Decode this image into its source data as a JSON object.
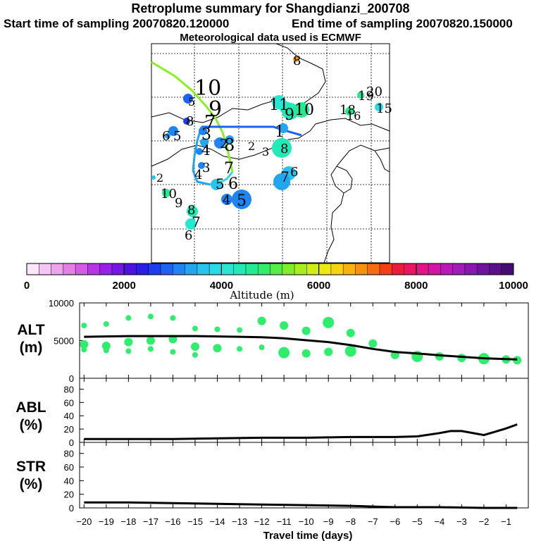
{
  "header": {
    "title": "Retroplume summary for Shangdianzi_200708",
    "start_label": "Start time of sampling 20070820.120000",
    "end_label": "End time of sampling 20070820.150000",
    "met_label": "Meteorological data used is ECMWF"
  },
  "colorbar": {
    "title": "Altitude (m)",
    "ticks": [
      "0",
      "2000",
      "4000",
      "6000",
      "8000",
      "10000"
    ],
    "range": [
      0,
      10000
    ],
    "colors": [
      "#fbe5fb",
      "#f4c6f4",
      "#eda4ed",
      "#e37fe6",
      "#d35be6",
      "#b934e8",
      "#9820ea",
      "#7416e6",
      "#4c12e0",
      "#2a1de4",
      "#1c3ef0",
      "#1d62f4",
      "#1f85f4",
      "#22a6f2",
      "#26c4ee",
      "#2ad9e8",
      "#26e6d4",
      "#22eab6",
      "#21ec94",
      "#2fee6e",
      "#55ee46",
      "#7fee28",
      "#a8ee1c",
      "#cfee14",
      "#eeea10",
      "#f8d40e",
      "#f8b40c",
      "#f8920c",
      "#f86c10",
      "#f43e14",
      "#ee1c3c",
      "#ea1664",
      "#e21488",
      "#d414a6",
      "#bc18b8",
      "#a21cbc",
      "#8818b0",
      "#70149e",
      "#5a108a",
      "#460c74"
    ]
  },
  "map": {
    "trajectory_path_labels": [
      "1",
      "2",
      "3",
      "4",
      "5",
      "6",
      "7",
      "8",
      "9",
      "10"
    ],
    "clusters": [
      {
        "label": "1",
        "altitude": 3000
      },
      {
        "label": "2",
        "altitude": 3200
      },
      {
        "label": "3",
        "altitude": 3400
      },
      {
        "label": "4",
        "altitude": 3500
      },
      {
        "label": "5",
        "altitude": 3600
      },
      {
        "label": "6",
        "altitude": 3800
      },
      {
        "label": "7",
        "altitude": 4000
      },
      {
        "label": "8",
        "altitude": 4300
      },
      {
        "label": "9",
        "altitude": 4600
      },
      {
        "label": "10",
        "altitude": 4800
      }
    ]
  },
  "chart_data": [
    {
      "type": "scatter+line",
      "panel": "ALT",
      "ylabel": "ALT\n(m)",
      "ylabel_line1": "ALT",
      "ylabel_line2": "(m)",
      "ylim": [
        0,
        10000
      ],
      "yticks": [
        "10000",
        "5000",
        "0"
      ],
      "xlim": [
        -20,
        0
      ],
      "line": {
        "x": [
          -20,
          -19,
          -18,
          -17,
          -16,
          -15,
          -14,
          -13,
          -12,
          -11,
          -10,
          -9,
          -8,
          -7,
          -6,
          -5,
          -4,
          -3,
          -2,
          -1,
          -0.5
        ],
        "y": [
          5500,
          5550,
          5600,
          5600,
          5600,
          5600,
          5550,
          5500,
          5450,
          5300,
          5050,
          4800,
          4400,
          3900,
          3500,
          3300,
          3050,
          2850,
          2650,
          2550,
          2500
        ]
      },
      "dots": {
        "x": [
          -20,
          -20,
          -20,
          -19,
          -19,
          -19,
          -18,
          -18,
          -18,
          -17,
          -17,
          -17,
          -16,
          -16,
          -16,
          -15,
          -15,
          -15,
          -14,
          -14,
          -13,
          -13,
          -12,
          -12,
          -11,
          -11,
          -10,
          -10,
          -9,
          -9,
          -8,
          -8,
          -7,
          -6,
          -5,
          -4,
          -3,
          -2,
          -1,
          -0.5
        ],
        "y": [
          7000,
          4500,
          3800,
          7200,
          4300,
          3700,
          8000,
          4800,
          3600,
          8200,
          5000,
          3900,
          8000,
          5200,
          3500,
          6600,
          4200,
          3100,
          6500,
          4000,
          6400,
          3900,
          7600,
          4100,
          7000,
          3400,
          6300,
          3300,
          7400,
          3500,
          6000,
          3600,
          4600,
          3100,
          2900,
          2900,
          2700,
          2600,
          2500,
          2400
        ]
      }
    },
    {
      "type": "line",
      "panel": "ABL",
      "ylabel": "ABL\n(%)",
      "ylabel_line1": "ABL",
      "ylabel_line2": "(%)",
      "ylim": [
        0,
        90
      ],
      "yticks": [
        "80",
        "60",
        "40",
        "20",
        "0"
      ],
      "xlim": [
        -20,
        0
      ],
      "x": [
        -20,
        -18,
        -16,
        -14,
        -12,
        -10,
        -8,
        -6,
        -5,
        -4,
        -3.5,
        -3,
        -2,
        -1.5,
        -1,
        -0.5
      ],
      "y": [
        5,
        5,
        5,
        6,
        7,
        7,
        8,
        8,
        9,
        14,
        17,
        17,
        11,
        16,
        21,
        27
      ]
    },
    {
      "type": "line",
      "panel": "STR",
      "ylabel": "STR\n(%)",
      "ylabel_line1": "STR",
      "ylabel_line2": "(%)",
      "ylim": [
        0,
        90
      ],
      "yticks": [
        "80",
        "60",
        "40",
        "20",
        "0"
      ],
      "xlim": [
        -20,
        0
      ],
      "x": [
        -20,
        -18,
        -16,
        -14,
        -12,
        -10,
        -8,
        -7,
        -6,
        -4,
        -2,
        -0.5
      ],
      "y": [
        8,
        8,
        7,
        6,
        5,
        4,
        3,
        2,
        1,
        1,
        0,
        0
      ]
    }
  ],
  "xaxis": {
    "title": "Travel time (days)",
    "ticks": [
      "−20",
      "−19",
      "−18",
      "−17",
      "−16",
      "−15",
      "−14",
      "−13",
      "−12",
      "−11",
      "−10",
      "−9",
      "−8",
      "−7",
      "−6",
      "−5",
      "−4",
      "−3",
      "−2",
      "−1"
    ],
    "tick_values": [
      -20,
      -19,
      -18,
      -17,
      -16,
      -15,
      -14,
      -13,
      -12,
      -11,
      -10,
      -9,
      -8,
      -7,
      -6,
      -5,
      -4,
      -3,
      -2,
      -1
    ]
  }
}
